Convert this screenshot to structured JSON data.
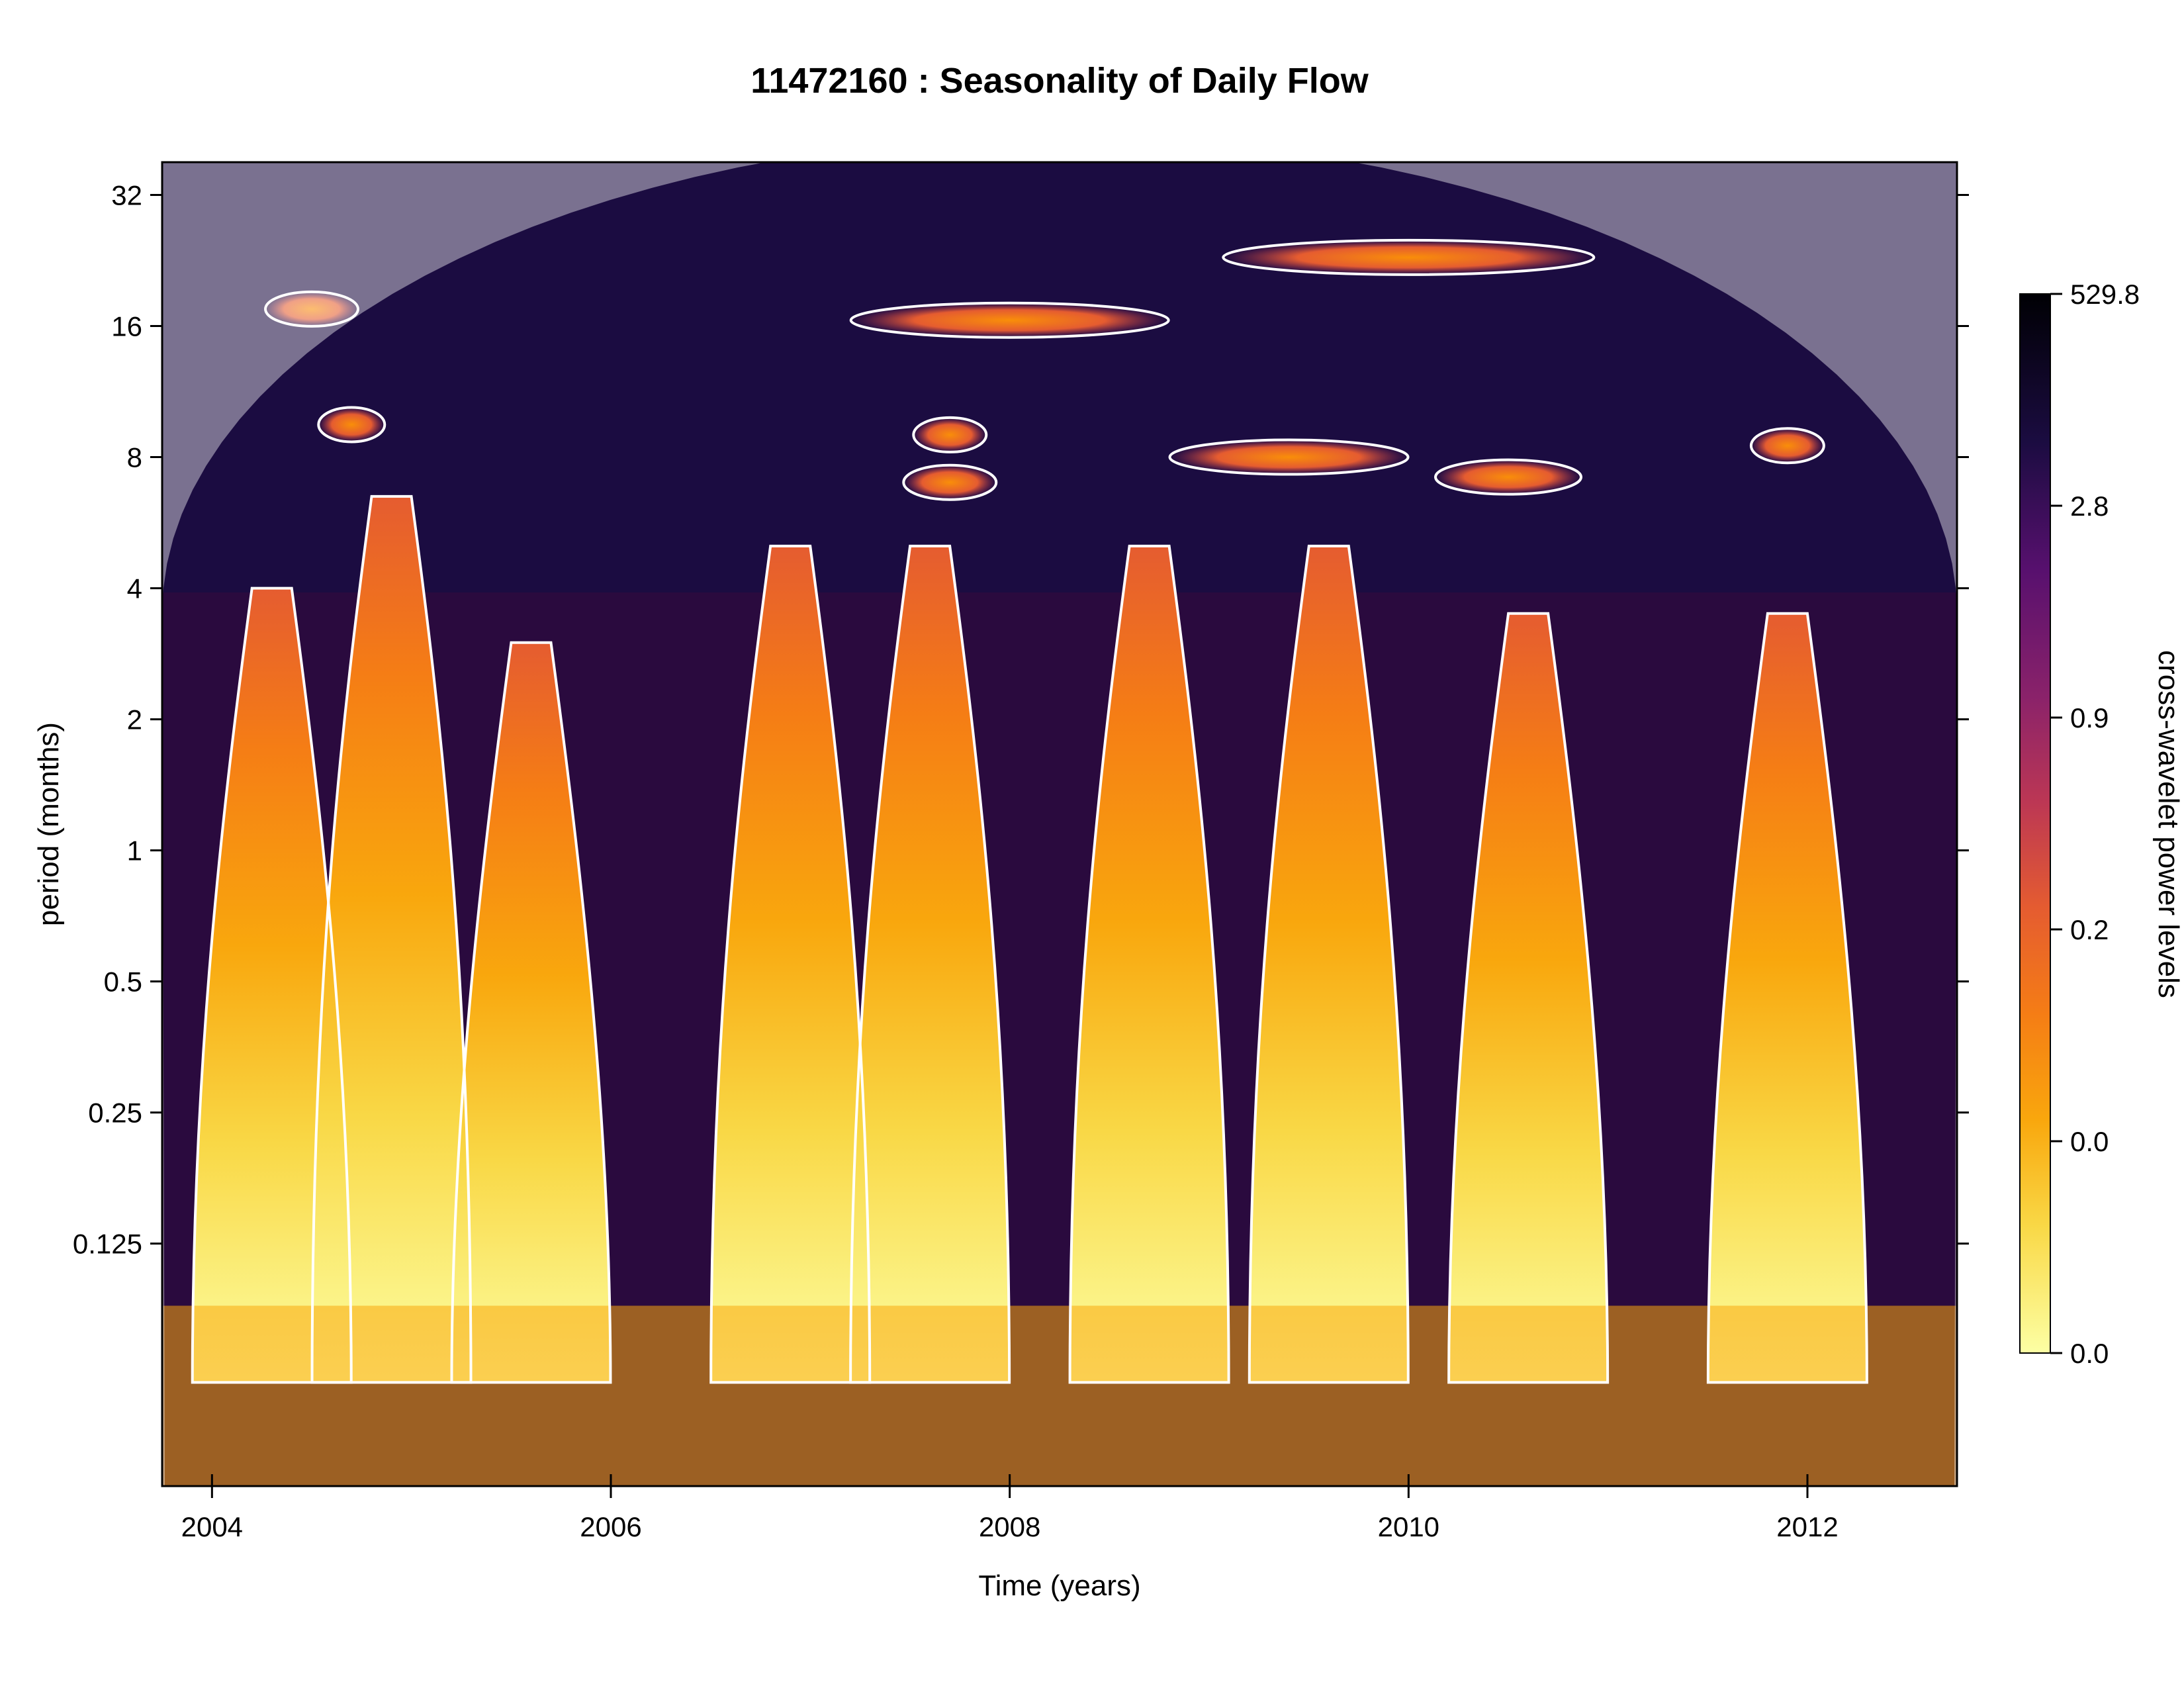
{
  "chart_data": {
    "type": "heatmap",
    "title": "11472160 : Seasonality of Daily Flow",
    "xlabel": "Time (years)",
    "ylabel": "period (months)",
    "xlim": [
      2003.75,
      2012.75
    ],
    "ylim_log2": [
      -4.85,
      5.25
    ],
    "y_scale": "log2",
    "x_ticks": [
      "2004",
      "2006",
      "2008",
      "2010",
      "2012"
    ],
    "y_ticks": [
      "0.125",
      "0.25",
      "0.5",
      "1",
      "2",
      "4",
      "8",
      "16",
      "32"
    ],
    "colorbar": {
      "label": "cross-wavelet power levels",
      "ticks": [
        "0.0",
        "0.0",
        "0.2",
        "0.9",
        "2.8",
        "529.8"
      ],
      "max_label": "529.8",
      "colors": [
        "#fcffa4",
        "#f9c932",
        "#f98e09",
        "#e55c30",
        "#bc3754",
        "#8a226a",
        "#57106e",
        "#1b0c41",
        "#000004"
      ]
    },
    "high_power_bands": [
      {
        "center_year": 2004.3,
        "period_range_months": [
          0.06,
          4.0
        ]
      },
      {
        "center_year": 2004.9,
        "period_range_months": [
          0.06,
          6.5
        ]
      },
      {
        "center_year": 2005.6,
        "period_range_months": [
          0.06,
          3.0
        ]
      },
      {
        "center_year": 2006.9,
        "period_range_months": [
          0.06,
          5.0
        ]
      },
      {
        "center_year": 2007.6,
        "period_range_months": [
          0.06,
          5.0
        ]
      },
      {
        "center_year": 2008.7,
        "period_range_months": [
          0.06,
          5.0
        ]
      },
      {
        "center_year": 2009.6,
        "period_range_months": [
          0.06,
          5.0
        ]
      },
      {
        "center_year": 2010.6,
        "period_range_months": [
          0.06,
          3.5
        ]
      },
      {
        "center_year": 2011.9,
        "period_range_months": [
          0.06,
          3.5
        ]
      }
    ],
    "significance_contour_color": "#ffffff",
    "cone_of_influence": true,
    "grid": false,
    "legend": "colorbar-right"
  }
}
